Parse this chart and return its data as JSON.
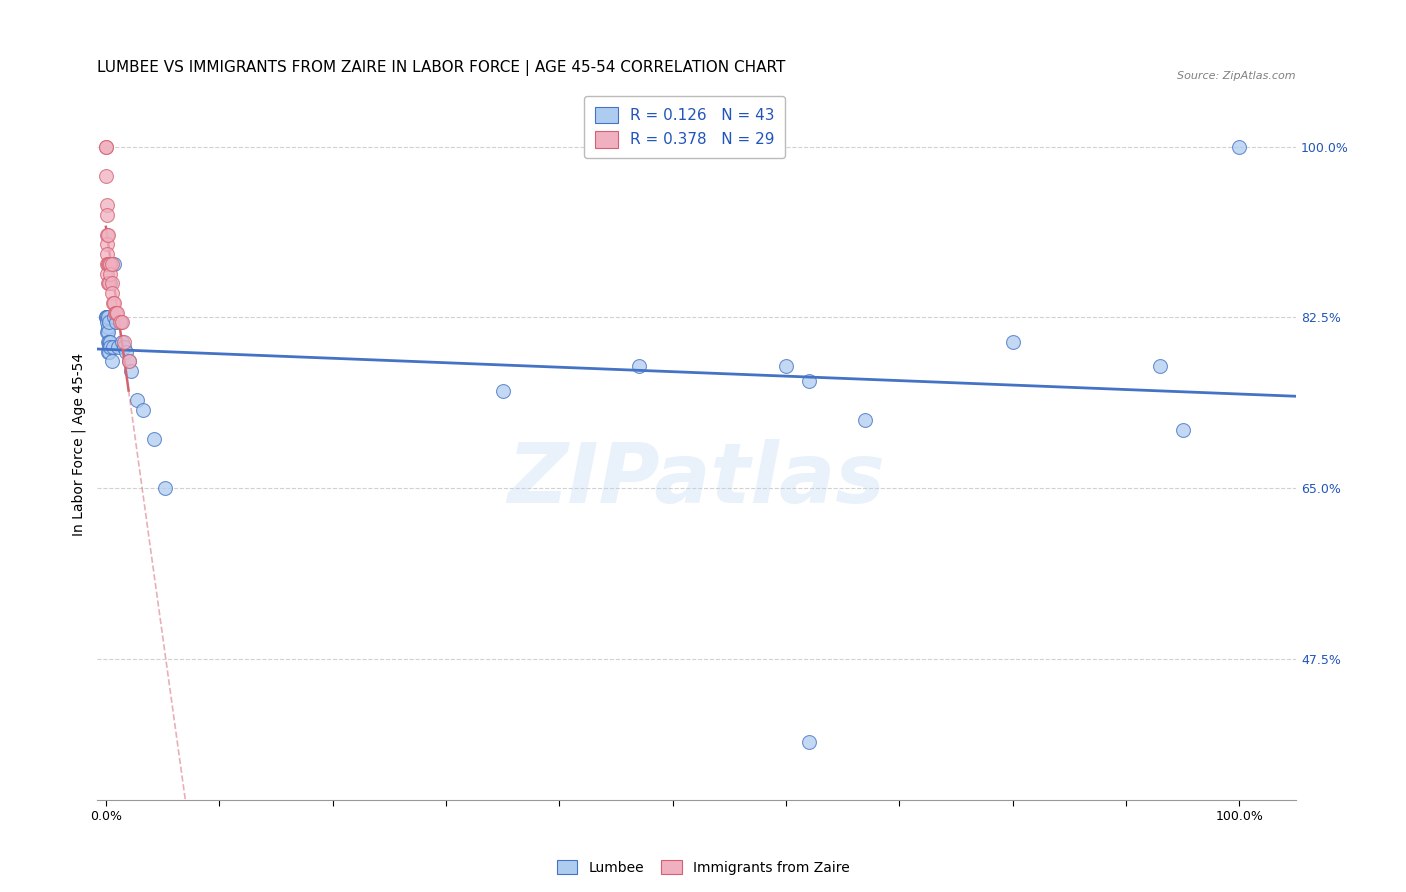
{
  "title": "LUMBEE VS IMMIGRANTS FROM ZAIRE IN LABOR FORCE | AGE 45-54 CORRELATION CHART",
  "source": "Source: ZipAtlas.com",
  "ylabel": "In Labor Force | Age 45-54",
  "watermark": "ZIPatlas",
  "lumbee_R": 0.126,
  "lumbee_N": 43,
  "zaire_R": 0.378,
  "zaire_N": 29,
  "lumbee_color": "#aeccf0",
  "zaire_color": "#f0b0c0",
  "lumbee_line_color": "#4472c4",
  "zaire_line_color": "#d46070",
  "lumbee_x": [
    0.0,
    0.004,
    0.007,
    0.0,
    0.001,
    0.001,
    0.001,
    0.002,
    0.002,
    0.002,
    0.002,
    0.002,
    0.003,
    0.003,
    0.003,
    0.003,
    0.004,
    0.004,
    0.005,
    0.006,
    0.007,
    0.009,
    0.011,
    0.013,
    0.014,
    0.016,
    0.018,
    0.02,
    0.022,
    0.027,
    0.033,
    0.042,
    0.052,
    0.35,
    0.47,
    0.6,
    0.62,
    0.67,
    0.8,
    0.93,
    0.95,
    0.62,
    1.0
  ],
  "lumbee_y": [
    0.825,
    0.86,
    0.88,
    0.825,
    0.825,
    0.82,
    0.81,
    0.815,
    0.81,
    0.8,
    0.79,
    0.825,
    0.82,
    0.8,
    0.795,
    0.79,
    0.8,
    0.795,
    0.78,
    0.795,
    0.825,
    0.82,
    0.795,
    0.82,
    0.8,
    0.795,
    0.79,
    0.78,
    0.77,
    0.74,
    0.73,
    0.7,
    0.65,
    0.75,
    0.775,
    0.775,
    0.76,
    0.72,
    0.8,
    0.775,
    0.71,
    0.39,
    1.0
  ],
  "zaire_x": [
    0.0,
    0.0,
    0.0,
    0.001,
    0.001,
    0.001,
    0.001,
    0.001,
    0.001,
    0.001,
    0.002,
    0.002,
    0.002,
    0.003,
    0.003,
    0.004,
    0.004,
    0.005,
    0.005,
    0.005,
    0.006,
    0.007,
    0.008,
    0.009,
    0.01,
    0.012,
    0.014,
    0.016,
    0.02
  ],
  "zaire_y": [
    1.0,
    1.0,
    0.97,
    0.94,
    0.93,
    0.91,
    0.9,
    0.89,
    0.88,
    0.87,
    0.91,
    0.88,
    0.86,
    0.88,
    0.86,
    0.88,
    0.87,
    0.88,
    0.86,
    0.85,
    0.84,
    0.84,
    0.83,
    0.83,
    0.83,
    0.82,
    0.82,
    0.8,
    0.78
  ],
  "ytick_positions": [
    0.475,
    0.65,
    0.825,
    1.0
  ],
  "ytick_labels": [
    "47.5%",
    "65.0%",
    "82.5%",
    "100.0%"
  ],
  "ymin": 0.33,
  "ymax": 1.06,
  "xmin": -0.008,
  "xmax": 1.05,
  "legend_text_color": "#2255bb",
  "grid_color": "#cccccc",
  "background_color": "#ffffff",
  "title_fontsize": 11,
  "axis_label_fontsize": 10,
  "tick_fontsize": 9,
  "legend_fontsize": 11,
  "scatter_size": 100,
  "scatter_alpha": 0.75,
  "scatter_linewidth": 0.8
}
